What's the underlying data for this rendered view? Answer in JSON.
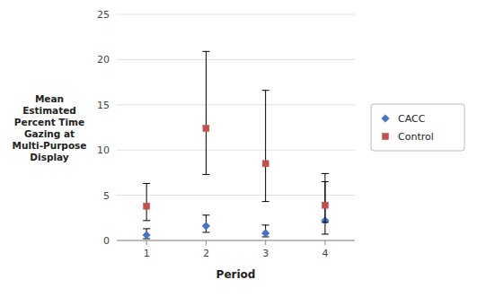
{
  "chart_data": {
    "type": "scatter",
    "xlabel": "Period",
    "ylabel": [
      "Mean",
      "Estimated",
      "Percent Time",
      "Gazing at",
      "Multi-Purpose",
      "Display"
    ],
    "x": [
      1,
      2,
      3,
      4
    ],
    "series": [
      {
        "name": "CACC",
        "color": "#4472C4",
        "marker": "diamond",
        "values": [
          0.6,
          1.6,
          0.8,
          2.2
        ],
        "ci_low": [
          0.2,
          0.9,
          0.4,
          0.7
        ],
        "ci_high": [
          1.3,
          2.8,
          1.7,
          6.5
        ]
      },
      {
        "name": "Control",
        "color": "#C0504D",
        "marker": "square",
        "values": [
          3.8,
          12.4,
          8.5,
          3.9
        ],
        "ci_low": [
          2.2,
          7.3,
          4.3,
          2.0
        ],
        "ci_high": [
          6.3,
          20.9,
          16.6,
          7.4
        ]
      }
    ],
    "xlim": [
      0.5,
      4.5
    ],
    "xticks": [
      1,
      2,
      3,
      4
    ],
    "ylim": [
      0,
      25
    ],
    "yticks": [
      0,
      5,
      10,
      15,
      20,
      25
    ],
    "grid": true,
    "legend": "right"
  }
}
